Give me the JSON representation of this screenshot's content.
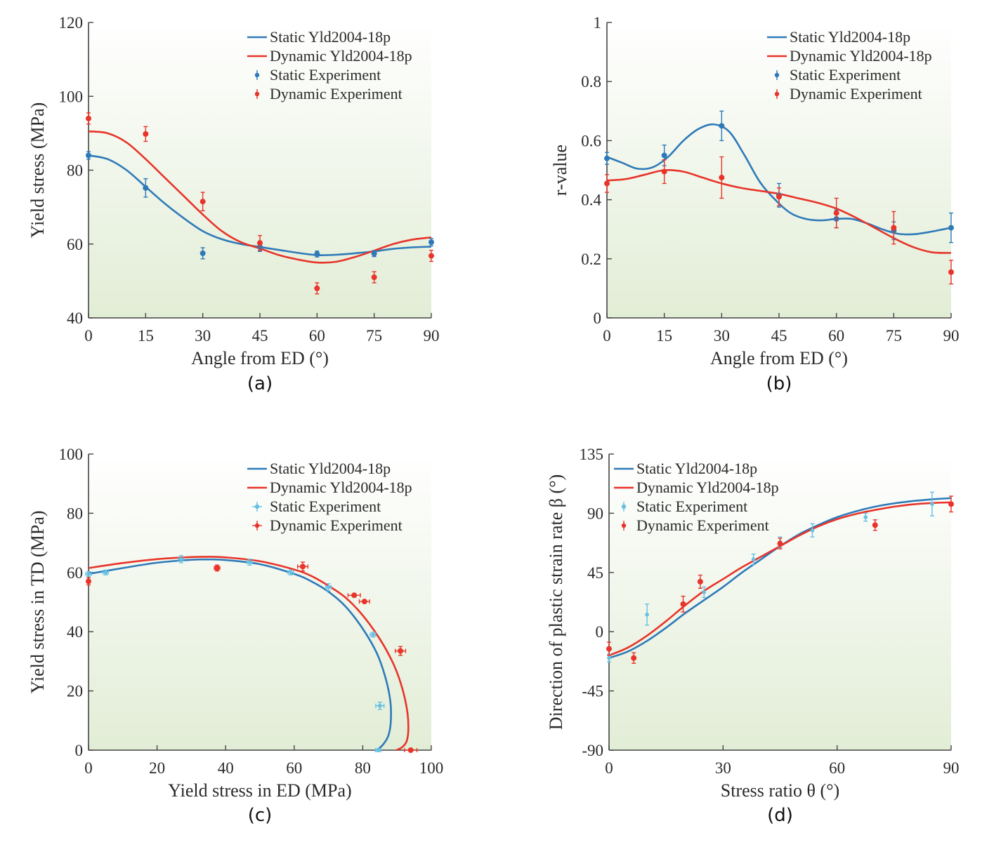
{
  "colors": {
    "static": "#2e7ab8",
    "dynamic": "#e8342a",
    "static_light": "#66c0e4",
    "bg_top": "#ffffff",
    "bg_bottom": "#e2edd6",
    "axis": "#444444"
  },
  "chart_data": [
    {
      "panel_label": "(a)",
      "type": "line",
      "xlabel": "Angle from ED (°)",
      "ylabel": "Yield stress (MPa)",
      "xlim": [
        0,
        90
      ],
      "ylim": [
        40,
        120
      ],
      "xticks": [
        "0",
        "15",
        "30",
        "45",
        "60",
        "75",
        "90"
      ],
      "yticks": [
        "40",
        "60",
        "80",
        "100",
        "120"
      ],
      "legend": [
        "Static Yld2004-18p",
        "Dynamic Yld2004-18p",
        "Static Experiment",
        "Dynamic Experiment"
      ],
      "legend_position": "top-right",
      "series": [
        {
          "name": "Static Yld2004-18p",
          "kind": "curve",
          "color": "static",
          "x": [
            0,
            5,
            10,
            15,
            20,
            25,
            30,
            35,
            40,
            45,
            50,
            55,
            60,
            65,
            70,
            75,
            80,
            85,
            90
          ],
          "y": [
            84,
            83,
            80,
            75.5,
            71,
            67,
            63.5,
            61.3,
            60,
            59.2,
            58.4,
            57.6,
            57,
            57.1,
            57.5,
            58,
            58.7,
            59.1,
            59.3
          ]
        },
        {
          "name": "Dynamic Yld2004-18p",
          "kind": "curve",
          "color": "dynamic",
          "x": [
            0,
            5,
            10,
            15,
            20,
            25,
            30,
            35,
            40,
            45,
            50,
            55,
            60,
            65,
            70,
            75,
            80,
            85,
            90
          ],
          "y": [
            90.5,
            90,
            87.5,
            83,
            78,
            73,
            68,
            63.5,
            60.5,
            58.8,
            57,
            55.8,
            55,
            55.2,
            56.5,
            58.2,
            60,
            61.2,
            61.8
          ]
        },
        {
          "name": "Static Experiment",
          "kind": "points",
          "color": "static",
          "x": [
            0,
            15,
            30,
            45,
            60,
            75,
            90
          ],
          "y": [
            84,
            75.2,
            57.5,
            59.2,
            57.3,
            57.4,
            60.5
          ],
          "yerr": [
            1,
            2.5,
            1.5,
            1.2,
            0.8,
            0.8,
            1
          ]
        },
        {
          "name": "Dynamic Experiment",
          "kind": "points",
          "color": "dynamic",
          "x": [
            0,
            15,
            30,
            45,
            60,
            75,
            90
          ],
          "y": [
            94,
            89.8,
            71.5,
            60.3,
            48,
            51,
            56.8
          ],
          "yerr": [
            1.5,
            2,
            2.5,
            2,
            1.5,
            1.5,
            1.5
          ]
        }
      ]
    },
    {
      "panel_label": "(b)",
      "type": "line",
      "xlabel": "Angle from ED (°)",
      "ylabel": "r-value",
      "xlim": [
        0,
        90
      ],
      "ylim": [
        0,
        1
      ],
      "xticks": [
        "0",
        "15",
        "30",
        "45",
        "60",
        "75",
        "90"
      ],
      "yticks": [
        "0",
        "0.2",
        "0.4",
        "0.6",
        "0.8",
        "1"
      ],
      "legend": [
        "Static Yld2004-18p",
        "Dynamic Yld2004-18p",
        "Static Experiment",
        "Dynamic Experiment"
      ],
      "legend_position": "top-right",
      "series": [
        {
          "name": "Static Yld2004-18p",
          "kind": "curve",
          "color": "static",
          "x": [
            0,
            4,
            8,
            12,
            16,
            20,
            24,
            28,
            32,
            36,
            40,
            44,
            48,
            52,
            56,
            60,
            64,
            68,
            72,
            76,
            80,
            84,
            88,
            90
          ],
          "y": [
            0.545,
            0.525,
            0.505,
            0.51,
            0.545,
            0.6,
            0.64,
            0.655,
            0.63,
            0.55,
            0.46,
            0.4,
            0.355,
            0.335,
            0.33,
            0.335,
            0.335,
            0.32,
            0.3,
            0.285,
            0.283,
            0.29,
            0.3,
            0.305
          ]
        },
        {
          "name": "Dynamic Yld2004-18p",
          "kind": "curve",
          "color": "dynamic",
          "x": [
            0,
            5,
            10,
            15,
            20,
            25,
            30,
            35,
            40,
            45,
            50,
            55,
            60,
            65,
            70,
            75,
            80,
            85,
            90
          ],
          "y": [
            0.465,
            0.47,
            0.485,
            0.5,
            0.495,
            0.475,
            0.455,
            0.44,
            0.43,
            0.42,
            0.405,
            0.39,
            0.37,
            0.34,
            0.305,
            0.27,
            0.24,
            0.222,
            0.22
          ]
        },
        {
          "name": "Static Experiment",
          "kind": "points",
          "color": "static",
          "x": [
            0,
            15,
            30,
            45,
            60,
            75,
            90
          ],
          "y": [
            0.54,
            0.55,
            0.65,
            0.415,
            0.335,
            0.295,
            0.305
          ],
          "yerr": [
            0.02,
            0.035,
            0.05,
            0.04,
            0.03,
            0.03,
            0.05
          ]
        },
        {
          "name": "Dynamic Experiment",
          "kind": "points",
          "color": "dynamic",
          "x": [
            0,
            15,
            30,
            45,
            60,
            75,
            90
          ],
          "y": [
            0.455,
            0.495,
            0.475,
            0.41,
            0.355,
            0.305,
            0.155
          ],
          "yerr": [
            0.03,
            0.04,
            0.07,
            0.03,
            0.05,
            0.055,
            0.04
          ]
        }
      ]
    },
    {
      "panel_label": "(c)",
      "type": "line",
      "xlabel": "Yield stress in ED (MPa)",
      "ylabel": "Yield stress in TD (MPa)",
      "xlim": [
        0,
        100
      ],
      "ylim": [
        0,
        100
      ],
      "xticks": [
        "0",
        "20",
        "40",
        "60",
        "80",
        "100"
      ],
      "yticks": [
        "0",
        "20",
        "40",
        "60",
        "80",
        "100"
      ],
      "legend": [
        "Static Yld2004-18p",
        "Dynamic Yld2004-18p",
        "Static Experiment",
        "Dynamic Experiment"
      ],
      "legend_position": "top-right",
      "series": [
        {
          "name": "Static Yld2004-18p",
          "kind": "curve",
          "color": "static",
          "x": [
            0,
            10,
            20,
            30,
            35,
            40,
            50,
            60,
            65,
            70,
            75,
            80,
            84,
            86.5,
            88,
            88.2,
            87.5,
            86,
            84.2
          ],
          "y": [
            59.5,
            61.5,
            63.3,
            64.3,
            64.4,
            64.2,
            62.8,
            59.5,
            57,
            53.5,
            48.5,
            41,
            33,
            25,
            17,
            10,
            5,
            2,
            0
          ]
        },
        {
          "name": "Dynamic Yld2004-18p",
          "kind": "curve",
          "color": "dynamic",
          "x": [
            0,
            10,
            20,
            30,
            35,
            40,
            50,
            60,
            65,
            70,
            75,
            80,
            85,
            89,
            91.5,
            93,
            93.3,
            92.8,
            91.5,
            89.8
          ],
          "y": [
            61.5,
            63.2,
            64.5,
            65.2,
            65.3,
            65.1,
            63.8,
            61,
            58.8,
            55.5,
            51.5,
            45.5,
            37.5,
            29,
            21,
            13,
            7,
            3,
            1,
            0
          ]
        },
        {
          "name": "Static Experiment",
          "kind": "points",
          "color": "static_light",
          "x": [
            0,
            5,
            27,
            47,
            59,
            70,
            83,
            85,
            84.5
          ],
          "y": [
            59.5,
            60,
            64.5,
            63.5,
            60,
            55,
            39,
            15,
            0
          ],
          "yerr": [
            0.8,
            0.8,
            1.2,
            1,
            0.8,
            1.2,
            0.8,
            1.2,
            0.5
          ],
          "xerr": [
            0.8,
            0.8,
            0.8,
            0.8,
            0.8,
            0.8,
            0.8,
            1.2,
            0.8
          ]
        },
        {
          "name": "Dynamic Experiment",
          "kind": "points",
          "color": "dynamic",
          "x": [
            0,
            37.5,
            62.5,
            77.5,
            80.5,
            91,
            94
          ],
          "y": [
            57,
            61.5,
            62,
            52.3,
            50.2,
            33.5,
            0
          ],
          "yerr": [
            1.2,
            1,
            1.5,
            0.5,
            0.5,
            1.5,
            0.3
          ],
          "xerr": [
            0.3,
            0.8,
            1.5,
            1.8,
            1.5,
            1.5,
            1.8
          ]
        }
      ]
    },
    {
      "panel_label": "(d)",
      "type": "line",
      "xlabel": "Stress ratio θ (°)",
      "ylabel": "Direction of plastic strain rate β (°)",
      "xlim": [
        0,
        90
      ],
      "ylim": [
        -90,
        135
      ],
      "xticks": [
        "0",
        "30",
        "60",
        "90"
      ],
      "yticks": [
        "-90",
        "-45",
        "0",
        "45",
        "90",
        "135"
      ],
      "legend": [
        "Static Yld2004-18p",
        "Dynamic Yld2004-18p",
        "Static Experiment",
        "Dynamic Experiment"
      ],
      "legend_position": "top-left",
      "series": [
        {
          "name": "Static Yld2004-18p",
          "kind": "curve",
          "color": "static",
          "x": [
            0,
            5,
            10,
            15,
            20,
            25,
            30,
            35,
            40,
            45,
            50,
            55,
            60,
            65,
            70,
            75,
            80,
            85,
            90
          ],
          "y": [
            -20,
            -15,
            -7,
            3,
            14,
            24,
            34,
            45,
            55,
            65,
            74,
            81,
            87,
            91.5,
            95,
            97.5,
            99.3,
            100.6,
            101.5
          ]
        },
        {
          "name": "Dynamic Yld2004-18p",
          "kind": "curve",
          "color": "dynamic",
          "x": [
            0,
            5,
            10,
            15,
            20,
            25,
            30,
            35,
            40,
            45,
            50,
            55,
            60,
            65,
            70,
            75,
            80,
            85,
            90
          ],
          "y": [
            -18,
            -12,
            -3,
            8,
            20,
            31,
            40,
            49,
            57,
            65,
            73,
            80,
            85.5,
            89.5,
            92.5,
            95,
            96.8,
            97.8,
            98.3
          ]
        },
        {
          "name": "Static Experiment",
          "kind": "points",
          "color": "static_light",
          "x": [
            0,
            10,
            25,
            38,
            45,
            53.5,
            67.5,
            85
          ],
          "y": [
            -20,
            13,
            30,
            55,
            68,
            77,
            87,
            97
          ],
          "yerr": [
            3,
            8,
            4,
            4,
            4,
            5,
            3,
            9
          ],
          "xerr": [
            0,
            0,
            0,
            0,
            0,
            0,
            0,
            0
          ]
        },
        {
          "name": "Dynamic Experiment",
          "kind": "points",
          "color": "dynamic",
          "x": [
            0,
            6.5,
            19.5,
            24,
            45,
            70,
            90
          ],
          "y": [
            -13,
            -20,
            21,
            38,
            67,
            81,
            97
          ],
          "yerr": [
            5,
            4,
            6,
            5,
            4,
            4,
            6
          ],
          "xerr": [
            0,
            0,
            0,
            0,
            0,
            0,
            0
          ]
        }
      ]
    }
  ]
}
